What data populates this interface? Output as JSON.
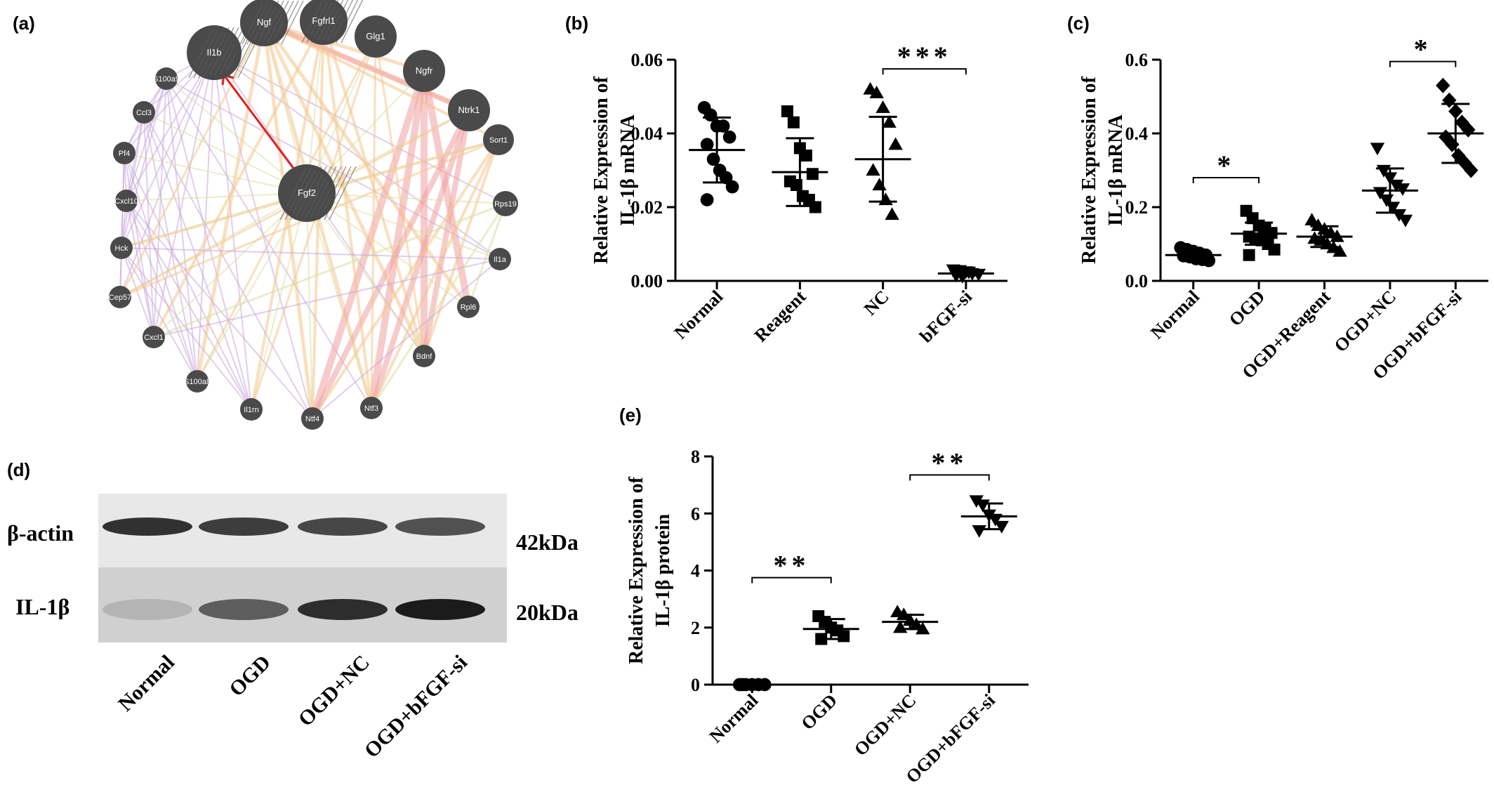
{
  "panels": {
    "a": "(a)",
    "b": "(b)",
    "c": "(c)",
    "d": "(d)",
    "e": "(e)"
  },
  "network": {
    "center": "Fgf2",
    "nodes": [
      "Il1b",
      "Ngf",
      "Fgfrl1",
      "Glg1",
      "Ngfr",
      "Ntrk1",
      "Sort1",
      "Rps19",
      "Il1a",
      "Rpl6",
      "Bdnf",
      "Ntf3",
      "Ntf4",
      "Il1rn",
      "S100a8",
      "Cxcl1",
      "Cep57",
      "Hck",
      "Cxcl10",
      "Pf4",
      "Ccl3",
      "S100a9"
    ],
    "colors": {
      "node": "#4a4a4a",
      "coexpression": "#c9a6dd",
      "physical": "#f0a0a0",
      "pathway": "#f5c48a",
      "genetic": "#d8dfa0",
      "highlight": "#e02020"
    }
  },
  "western": {
    "rows": [
      "β-actin",
      "IL-1β"
    ],
    "sizes": [
      "42kDa",
      "20kDa"
    ],
    "lanes": [
      "Normal",
      "OGD",
      "OGD+NC",
      "OGD+bFGF-si"
    ],
    "band_intensity": {
      "actin": [
        0.85,
        0.8,
        0.75,
        0.7
      ],
      "il1b": [
        0.15,
        0.6,
        0.85,
        0.95
      ]
    }
  },
  "chart_data": [
    {
      "id": "b",
      "type": "scatter",
      "ylabel": "Relative Expression of\nIL-1β mRNA",
      "categories": [
        "Normal",
        "Reagent",
        "NC",
        "bFGF-si"
      ],
      "ylim": [
        0,
        0.06
      ],
      "yticks": [
        "0.00",
        "0.02",
        "0.04",
        "0.06"
      ],
      "ytick_values": [
        0,
        0.02,
        0.04,
        0.06
      ],
      "markers": [
        "circle",
        "square",
        "triangle",
        "triangle-down"
      ],
      "groups": [
        {
          "mean": 0.0355,
          "sd": 0.0088,
          "points": [
            0.047,
            0.045,
            0.042,
            0.042,
            0.039,
            0.037,
            0.033,
            0.03,
            0.028,
            0.0255,
            0.022
          ]
        },
        {
          "mean": 0.0295,
          "sd": 0.0092,
          "points": [
            0.046,
            0.043,
            0.036,
            0.034,
            0.029,
            0.027,
            0.026,
            0.023,
            0.022,
            0.02
          ]
        },
        {
          "mean": 0.033,
          "sd": 0.0115,
          "points": [
            0.052,
            0.051,
            0.047,
            0.043,
            0.037,
            0.03,
            0.026,
            0.022,
            0.018
          ]
        },
        {
          "mean": 0.002,
          "sd": 0.0005,
          "points": [
            0.003,
            0.0028,
            0.0025,
            0.002,
            0.0018,
            0.0015,
            0.0012,
            0.0024
          ]
        }
      ],
      "annotations": [
        {
          "from": 2,
          "to": 3,
          "text": "***",
          "y": 0.0575
        }
      ]
    },
    {
      "id": "c",
      "type": "scatter",
      "ylabel": "Relative Expression of\nIL-1β mRNA",
      "categories": [
        "Normal",
        "OGD",
        "OGD+Reagent",
        "OGD+NC",
        "OGD+bFGF-si"
      ],
      "ylim": [
        0,
        0.6
      ],
      "yticks": [
        "0.0",
        "0.2",
        "0.4",
        "0.6"
      ],
      "ytick_values": [
        0,
        0.2,
        0.4,
        0.6
      ],
      "markers": [
        "circle",
        "square",
        "triangle",
        "triangle-down",
        "diamond"
      ],
      "groups": [
        {
          "mean": 0.07,
          "sd": 0.012,
          "points": [
            0.09,
            0.085,
            0.08,
            0.075,
            0.07,
            0.068,
            0.065,
            0.06,
            0.058,
            0.055,
            0.072,
            0.078
          ]
        },
        {
          "mean": 0.128,
          "sd": 0.03,
          "points": [
            0.19,
            0.17,
            0.15,
            0.14,
            0.13,
            0.12,
            0.115,
            0.11,
            0.1,
            0.085,
            0.07
          ]
        },
        {
          "mean": 0.12,
          "sd": 0.028,
          "points": [
            0.165,
            0.15,
            0.14,
            0.13,
            0.12,
            0.115,
            0.11,
            0.1,
            0.09,
            0.08
          ]
        },
        {
          "mean": 0.245,
          "sd": 0.06,
          "points": [
            0.36,
            0.3,
            0.28,
            0.26,
            0.25,
            0.24,
            0.22,
            0.2,
            0.18,
            0.165
          ]
        },
        {
          "mean": 0.4,
          "sd": 0.08,
          "points": [
            0.53,
            0.49,
            0.46,
            0.43,
            0.41,
            0.39,
            0.37,
            0.34,
            0.32,
            0.3
          ]
        }
      ],
      "annotations": [
        {
          "from": 0,
          "to": 1,
          "text": "*",
          "y": 0.28
        },
        {
          "from": 3,
          "to": 4,
          "text": "*",
          "y": 0.595
        }
      ]
    },
    {
      "id": "e",
      "type": "scatter",
      "ylabel": "Relative Expression of\nIL-1β protein",
      "categories": [
        "Normal",
        "OGD",
        "OGD+NC",
        "OGD+bFGF-si"
      ],
      "ylim": [
        0,
        8
      ],
      "yticks": [
        "0",
        "2",
        "4",
        "6",
        "8"
      ],
      "ytick_values": [
        0,
        2,
        4,
        6,
        8
      ],
      "markers": [
        "circle",
        "square",
        "triangle",
        "triangle-down"
      ],
      "groups": [
        {
          "mean": 0.0,
          "sd": 0,
          "points": [
            0,
            0,
            0,
            0,
            0,
            0
          ]
        },
        {
          "mean": 1.95,
          "sd": 0.35,
          "points": [
            2.4,
            2.2,
            2.0,
            1.9,
            1.7,
            1.6
          ]
        },
        {
          "mean": 2.2,
          "sd": 0.25,
          "points": [
            2.55,
            2.45,
            2.25,
            2.1,
            1.95,
            2.0
          ]
        },
        {
          "mean": 5.9,
          "sd": 0.45,
          "points": [
            6.45,
            6.3,
            5.95,
            5.8,
            5.55,
            5.4
          ]
        }
      ],
      "annotations": [
        {
          "from": 0,
          "to": 1,
          "text": "**",
          "y": 3.75
        },
        {
          "from": 2,
          "to": 3,
          "text": "**",
          "y": 7.35
        }
      ]
    }
  ]
}
